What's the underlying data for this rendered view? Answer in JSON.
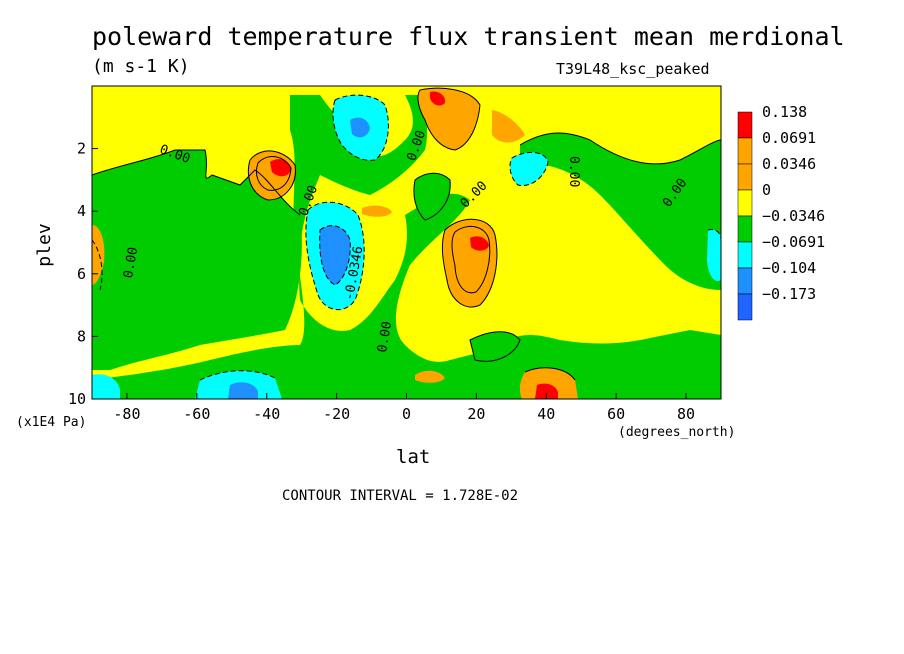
{
  "chart_data": {
    "type": "heatmap",
    "title": "poleward temperature flux transient mean merdional",
    "units": "(m s-1 K)",
    "run_label": "T39L48_ksc_peaked",
    "xlabel": "lat",
    "x_units": "(degrees_north)",
    "ylabel": "plev",
    "y_units": "(x1E4 Pa)",
    "xlim": [
      -90,
      90
    ],
    "ylim": [
      10,
      0
    ],
    "x_ticks": [
      "-80",
      "-60",
      "-40",
      "-20",
      "0",
      "20",
      "40",
      "60",
      "80"
    ],
    "y_ticks": [
      "2",
      "4",
      "6",
      "8",
      "10"
    ],
    "contour_interval": "CONTOUR INTERVAL = 1.728E-02",
    "legend": {
      "labels": [
        "0.138",
        "0.0691",
        "0.0346",
        "0",
        "−0.0346",
        "−0.0691",
        "−0.104",
        "−0.173"
      ],
      "colors": [
        "#ff0000",
        "#ffa500",
        "#ffa500",
        "#ffff00",
        "#00cc00",
        "#00ffff",
        "#1e90ff",
        "#1e64ff"
      ]
    },
    "contour_labels": [
      "0.00",
      "0.00",
      "0.00",
      "0.00",
      "0.00",
      "0.00",
      "0.00",
      "0.00",
      "-0.0346"
    ],
    "features": [
      {
        "lat": -35,
        "plev": 2.7,
        "value": 0.138
      },
      {
        "lat": 10,
        "plev": 0.4,
        "value": 0.138
      },
      {
        "lat": 20,
        "plev": 5.2,
        "value": 0.138
      },
      {
        "lat": 40,
        "plev": 9.8,
        "value": 0.138
      },
      {
        "lat": -20,
        "plev": 5.5,
        "value": -0.104
      },
      {
        "lat": -10,
        "plev": 1.5,
        "value": -0.0691
      },
      {
        "lat": 35,
        "plev": 3.0,
        "value": -0.0691
      },
      {
        "lat": -45,
        "plev": 9.5,
        "value": -0.0691
      }
    ]
  }
}
